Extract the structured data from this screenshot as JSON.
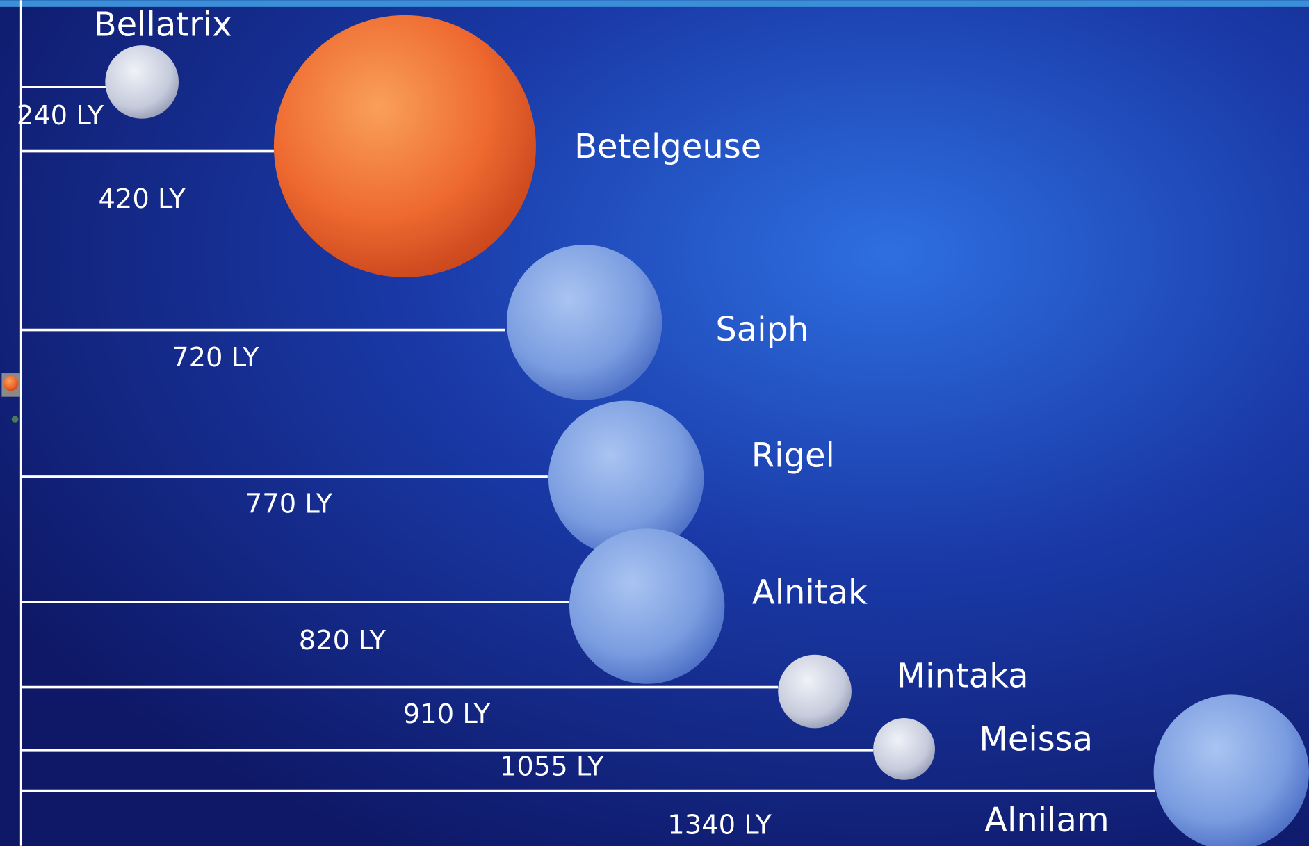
{
  "stars": [
    {
      "name": "Bellatrix",
      "distance": "240 LY"
    },
    {
      "name": "Betelgeuse",
      "distance": "420 LY"
    },
    {
      "name": "Saiph",
      "distance": "720 LY"
    },
    {
      "name": "Rigel",
      "distance": "770 LY"
    },
    {
      "name": "Alnitak",
      "distance": "820 LY"
    },
    {
      "name": "Mintaka",
      "distance": "910 LY"
    },
    {
      "name": "Meissa",
      "distance": "1055 LY"
    },
    {
      "name": "Alnilam",
      "distance": "1340 LY"
    }
  ]
}
